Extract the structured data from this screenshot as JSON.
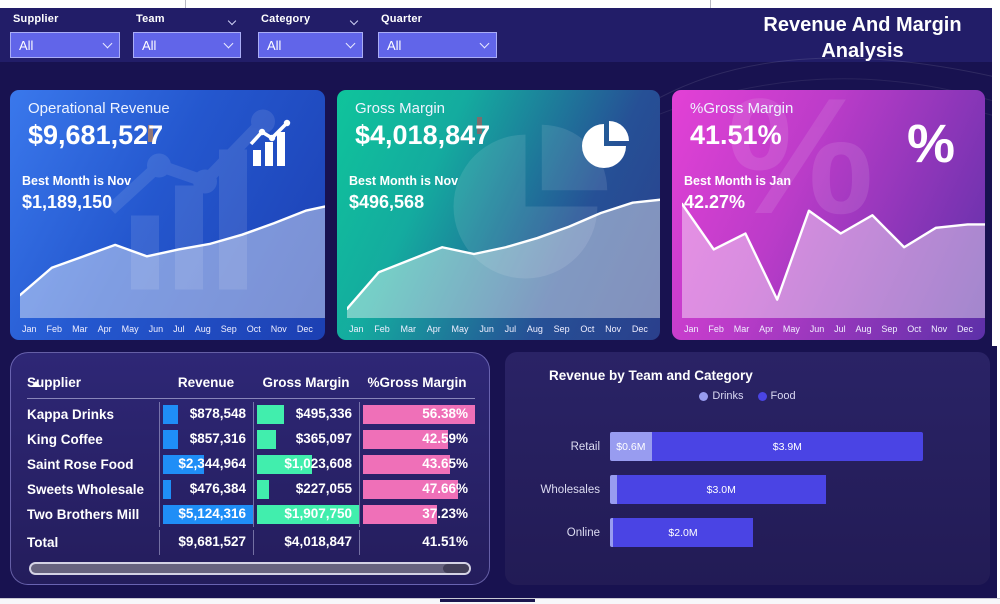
{
  "page": {
    "title_line1": "Revenue And Margin",
    "title_line2": "Analysis"
  },
  "filters": [
    {
      "label": "Supplier",
      "value": "All"
    },
    {
      "label": "Team",
      "value": "All"
    },
    {
      "label": "Category",
      "value": "All"
    },
    {
      "label": "Quarter",
      "value": "All"
    }
  ],
  "months": [
    "Jan",
    "Feb",
    "Mar",
    "Apr",
    "May",
    "Jun",
    "Jul",
    "Aug",
    "Sep",
    "Oct",
    "Nov",
    "Dec"
  ],
  "kpi_cards": [
    {
      "title": "Operational Revenue",
      "value": "$9,681,527",
      "best_label": "Best Month is Nov",
      "best_value": "$1,189,150",
      "icon": "bar-chart-icon"
    },
    {
      "title": "Gross Margin",
      "value": "$4,018,847",
      "best_label": "Best Month is Nov",
      "best_value": "$496,568",
      "icon": "pie-chart-icon"
    },
    {
      "title": "%Gross Margin",
      "value": "41.51%",
      "best_label": "Best Month is Jan",
      "best_value": "42.27%",
      "icon": "percent-icon"
    }
  ],
  "table": {
    "headers": [
      "Supplier",
      "Revenue",
      "Gross Margin",
      "%Gross Margin"
    ],
    "bar_colors": {
      "revenue": "#1f8ef7",
      "gross_margin": "#41eead",
      "pct": "#ef70b8"
    },
    "rows": [
      {
        "supplier": "Kappa Drinks",
        "revenue": 878548,
        "revenue_label": "$878,548",
        "gross_margin": 495336,
        "gross_margin_label": "$495,336",
        "pct": 56.38,
        "pct_label": "56.38%"
      },
      {
        "supplier": "King Coffee",
        "revenue": 857316,
        "revenue_label": "$857,316",
        "gross_margin": 365097,
        "gross_margin_label": "$365,097",
        "pct": 42.59,
        "pct_label": "42.59%"
      },
      {
        "supplier": "Saint Rose Food",
        "revenue": 2344964,
        "revenue_label": "$2,344,964",
        "gross_margin": 1023608,
        "gross_margin_label": "$1,023,608",
        "pct": 43.65,
        "pct_label": "43.65%"
      },
      {
        "supplier": "Sweets Wholesale",
        "revenue": 476384,
        "revenue_label": "$476,384",
        "gross_margin": 227055,
        "gross_margin_label": "$227,055",
        "pct": 47.66,
        "pct_label": "47.66%"
      },
      {
        "supplier": "Two Brothers Mill",
        "revenue": 5124316,
        "revenue_label": "$5,124,316",
        "gross_margin": 1907750,
        "gross_margin_label": "$1,907,750",
        "pct": 37.23,
        "pct_label": "37.23%"
      }
    ],
    "total": {
      "supplier": "Total",
      "revenue_label": "$9,681,527",
      "gross_margin_label": "$4,018,847",
      "pct_label": "41.51%"
    }
  },
  "team_chart": {
    "title": "Revenue by Team and Category",
    "legend": [
      {
        "name": "Drinks",
        "color": "#989cf0"
      },
      {
        "name": "Food",
        "color": "#4a44e4"
      }
    ],
    "axis_max_m": 4.5,
    "rows": [
      {
        "team": "Retail",
        "segments": [
          {
            "series": "Drinks",
            "value": 0.6,
            "label": "$0.6M"
          },
          {
            "series": "Food",
            "value": 3.9,
            "label": "$3.9M"
          }
        ]
      },
      {
        "team": "Wholesales",
        "segments": [
          {
            "series": "Drinks",
            "value": 0.1,
            "label": ""
          },
          {
            "series": "Food",
            "value": 3.0,
            "label": "$3.0M"
          }
        ]
      },
      {
        "team": "Online",
        "segments": [
          {
            "series": "Drinks",
            "value": 0.05,
            "label": ""
          },
          {
            "series": "Food",
            "value": 2.0,
            "label": "$2.0M"
          }
        ]
      }
    ]
  },
  "chart_data": [
    {
      "type": "area",
      "title": "Operational Revenue monthly trend",
      "x": [
        "Jan",
        "Feb",
        "Mar",
        "Apr",
        "May",
        "Jun",
        "Jul",
        "Aug",
        "Sep",
        "Oct",
        "Nov",
        "Dec"
      ],
      "values": [
        16,
        40,
        50,
        60,
        50,
        56,
        61,
        69,
        79,
        90,
        96,
        88
      ],
      "ylabel": "relative height % (unlabeled sparkline)",
      "grid": false,
      "legend_position": "none",
      "annotation": "peak Nov $1,189,150"
    },
    {
      "type": "area",
      "title": "Gross Margin monthly trend",
      "x": [
        "Jan",
        "Feb",
        "Mar",
        "Apr",
        "May",
        "Jun",
        "Jul",
        "Aug",
        "Sep",
        "Oct",
        "Nov",
        "Dec"
      ],
      "values": [
        4,
        36,
        47,
        58,
        52,
        58,
        66,
        76,
        88,
        97,
        100,
        92
      ],
      "ylabel": "relative height % (unlabeled sparkline)",
      "grid": false,
      "legend_position": "none",
      "annotation": "peak Nov $496,568"
    },
    {
      "type": "area",
      "title": "%Gross Margin monthly trend",
      "x": [
        "Jan",
        "Feb",
        "Mar",
        "Apr",
        "May",
        "Jun",
        "Jul",
        "Aug",
        "Sep",
        "Oct",
        "Nov",
        "Dec"
      ],
      "values": [
        96,
        56,
        70,
        12,
        90,
        70,
        86,
        58,
        75,
        78,
        78,
        79
      ],
      "ylabel": "relative height % (unlabeled sparkline)",
      "grid": false,
      "legend_position": "none",
      "annotation": "peak Jan 42.27%"
    },
    {
      "type": "bar",
      "title": "Revenue by Team and Category",
      "orientation": "horizontal",
      "stacked": true,
      "categories": [
        "Retail",
        "Wholesales",
        "Online"
      ],
      "series": [
        {
          "name": "Drinks",
          "values": [
            0.6,
            0.1,
            0.05
          ]
        },
        {
          "name": "Food",
          "values": [
            3.9,
            3.0,
            2.0
          ]
        }
      ],
      "unit": "$M",
      "xlim": [
        0,
        4.5
      ],
      "grid": false,
      "legend_position": "top"
    },
    {
      "type": "table",
      "title": "Supplier revenue and margin table",
      "columns": [
        "Supplier",
        "Revenue",
        "Gross Margin",
        "%Gross Margin"
      ],
      "rows": [
        [
          "Kappa Drinks",
          "$878,548",
          "$495,336",
          "56.38%"
        ],
        [
          "King Coffee",
          "$857,316",
          "$365,097",
          "42.59%"
        ],
        [
          "Saint Rose Food",
          "$2,344,964",
          "$1,023,608",
          "43.65%"
        ],
        [
          "Sweets Wholesale",
          "$476,384",
          "$227,055",
          "47.66%"
        ],
        [
          "Two Brothers Mill",
          "$5,124,316",
          "$1,907,750",
          "37.23%"
        ],
        [
          "Total",
          "$9,681,527",
          "$4,018,847",
          "41.51%"
        ]
      ]
    }
  ]
}
